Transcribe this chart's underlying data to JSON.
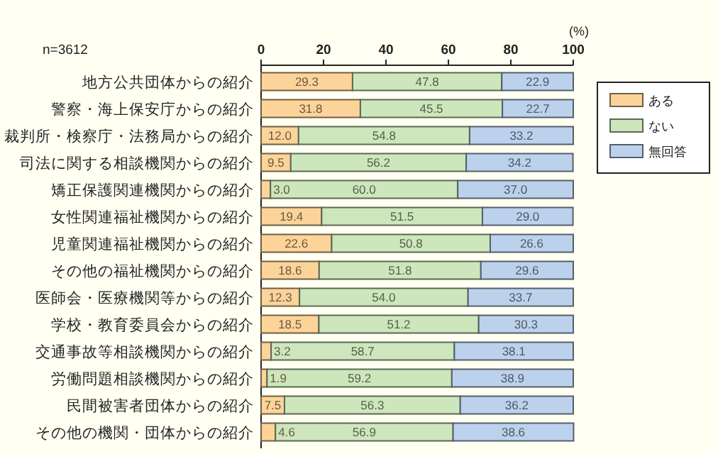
{
  "chart_data": {
    "type": "bar",
    "orientation": "horizontal",
    "stacked": true,
    "xlabel": "(%)",
    "annotations": [
      "n=3612"
    ],
    "xlim": [
      0,
      100
    ],
    "xticks": [
      0,
      20,
      40,
      60,
      80,
      100
    ],
    "legend": "right",
    "grid": false,
    "categories": [
      "地方公共団体からの紹介",
      "警察・海上保安庁からの紹介",
      "裁判所・検察庁・法務局からの紹介",
      "司法に関する相談機関からの紹介",
      "矯正保護関連機関からの紹介",
      "女性関連福祉機関からの紹介",
      "児童関連福祉機関からの紹介",
      "その他の福祉機関からの紹介",
      "医師会・医療機関等からの紹介",
      "学校・教育委員会からの紹介",
      "交通事故等相談機関からの紹介",
      "労働問題相談機関からの紹介",
      "民間被害者団体からの紹介",
      "その他の機関・団体からの紹介"
    ],
    "series": [
      {
        "name": "ある",
        "color": "#fcd49a",
        "values": [
          29.3,
          31.8,
          12.0,
          9.5,
          3.0,
          19.4,
          22.6,
          18.6,
          12.3,
          18.5,
          3.2,
          1.9,
          7.5,
          4.6
        ],
        "value_labels": [
          "29.3",
          "31.8",
          "12.0",
          "9.5",
          "3.0",
          "19.4",
          "22.6",
          "18.6",
          "12.3",
          "18.5",
          "3.2",
          "1.9",
          "7.5",
          "4.6"
        ]
      },
      {
        "name": "ない",
        "color": "#cde6bc",
        "values": [
          47.8,
          45.5,
          54.8,
          56.2,
          60.0,
          51.5,
          50.8,
          51.8,
          54.0,
          51.2,
          58.7,
          59.2,
          56.3,
          56.9
        ],
        "value_labels": [
          "47.8",
          "45.5",
          "54.8",
          "56.2",
          "60.0",
          "51.5",
          "50.8",
          "51.8",
          "54.0",
          "51.2",
          "58.7",
          "59.2",
          "56.3",
          "56.9"
        ]
      },
      {
        "name": "無回答",
        "color": "#bcd2ec",
        "values": [
          22.9,
          22.7,
          33.2,
          34.2,
          37.0,
          29.0,
          26.6,
          29.6,
          33.7,
          30.3,
          38.1,
          38.9,
          36.2,
          38.6
        ],
        "value_labels": [
          "22.9",
          "22.7",
          "33.2",
          "34.2",
          "37.0",
          "29.0",
          "26.6",
          "29.6",
          "33.7",
          "30.3",
          "38.1",
          "38.9",
          "36.2",
          "38.6"
        ]
      }
    ]
  }
}
